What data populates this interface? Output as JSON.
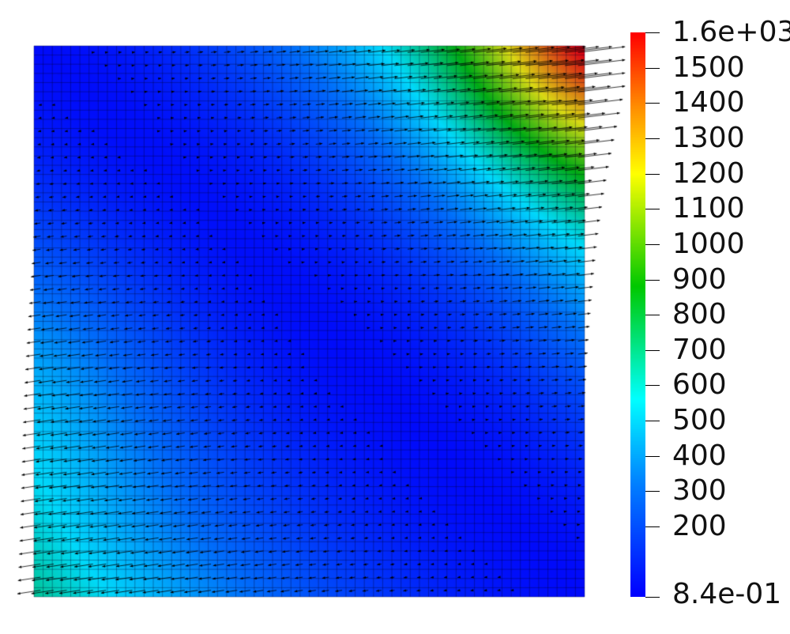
{
  "visualization": {
    "type": "vector-field-on-mesh",
    "colormap": "jet",
    "colors": {
      "min": "#0000ff",
      "low": "#00ffff",
      "mid": "#00cc00",
      "high": "#ffff00",
      "max": "#ff0000"
    },
    "glyphs": "arrow",
    "mesh_overlay": true
  },
  "colorbar": {
    "min": 0.84,
    "max": 1600,
    "min_label": "8.4e-01",
    "max_label": "1.6e+03",
    "ticks": [
      {
        "value": 1500,
        "label": "1500"
      },
      {
        "value": 1400,
        "label": "1400"
      },
      {
        "value": 1300,
        "label": "1300"
      },
      {
        "value": 1200,
        "label": "1200"
      },
      {
        "value": 1100,
        "label": "1100"
      },
      {
        "value": 1000,
        "label": "1000"
      },
      {
        "value": 900,
        "label": "900"
      },
      {
        "value": 800,
        "label": "800"
      },
      {
        "value": 700,
        "label": "700"
      },
      {
        "value": 600,
        "label": "600"
      },
      {
        "value": 500,
        "label": "500"
      },
      {
        "value": 400,
        "label": "400"
      },
      {
        "value": 300,
        "label": "300"
      },
      {
        "value": 200,
        "label": "200"
      }
    ]
  }
}
